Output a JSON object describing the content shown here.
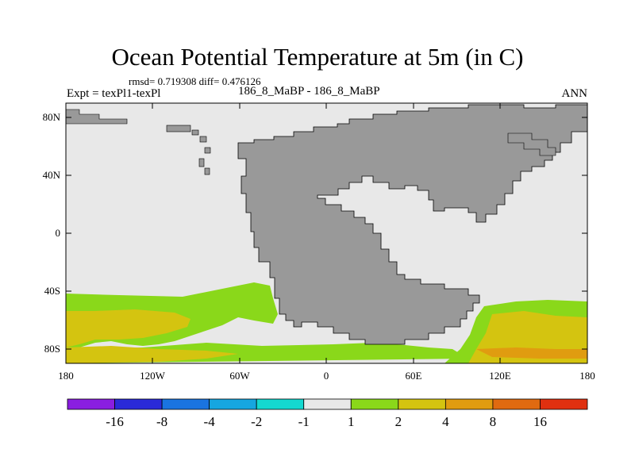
{
  "header": {
    "title": "Ocean Potential Temperature at 5m (in C)",
    "stats": "rmsd= 0.719308 diff= 0.476126",
    "expt": "Expt = texPl1-texPl",
    "case": "186_8_MaBP - 186_8_MaBP",
    "season": "ANN"
  },
  "axes": {
    "y_ticks": [
      "80N",
      "40N",
      "0",
      "40S",
      "80S"
    ],
    "x_ticks": [
      "180",
      "120W",
      "60W",
      "0",
      "60E",
      "120E",
      "180"
    ]
  },
  "colorbar": {
    "colors": [
      "#8a1ee0",
      "#2a2ad8",
      "#1a74e0",
      "#16a6e0",
      "#14d8d0",
      "#e8e8e8",
      "#8ad81a",
      "#d4c410",
      "#e09c10",
      "#e06a10",
      "#e03010"
    ],
    "labels": [
      "-16",
      "-8",
      "-4",
      "-2",
      "-1",
      "1",
      "2",
      "4",
      "8",
      "16"
    ]
  },
  "colors": {
    "land": "#999999",
    "ocean_neutral": "#e8e8e8",
    "green": "#8ad81a",
    "yellow": "#d4c410",
    "orange": "#e09c10"
  }
}
